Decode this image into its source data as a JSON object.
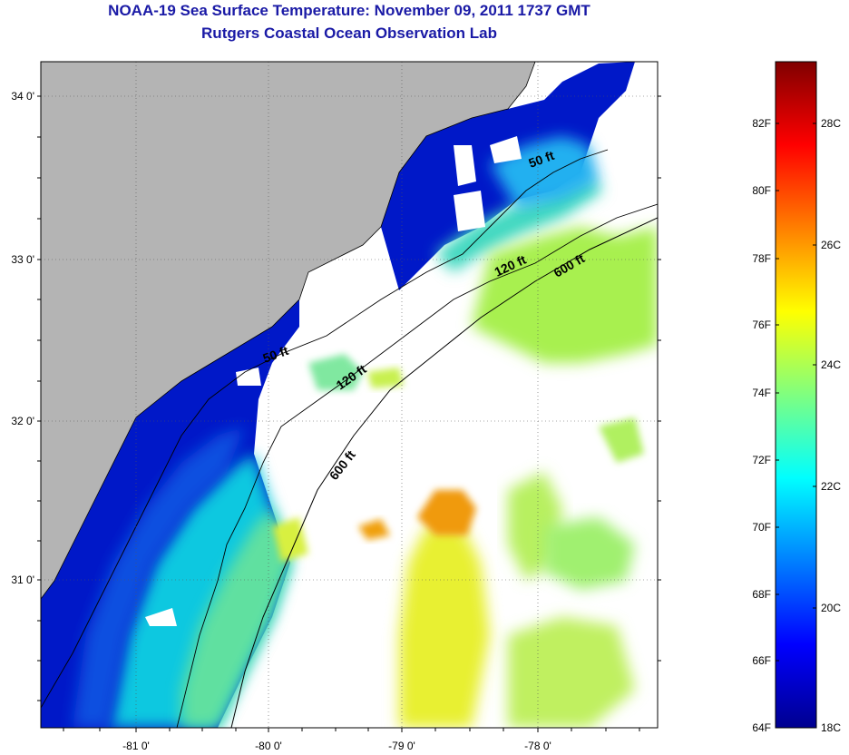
{
  "header": {
    "title": "NOAA-19 Sea Surface Temperature:  November 09, 2011 1737 GMT",
    "subtitle": "Rutgers Coastal Ocean Observation Lab"
  },
  "map": {
    "lon_labels": [
      "-81 0'",
      "-80 0'",
      "-79 0'",
      "-78 0'"
    ],
    "lat_labels": [
      "34 0'",
      "33 0'",
      "32 0'",
      "31 0'"
    ],
    "contours": [
      {
        "label": "50 ft"
      },
      {
        "label": "120 ft"
      },
      {
        "label": "600 ft"
      }
    ],
    "colors": {
      "land": "#b4b4b4",
      "no_data": "#ffffff",
      "coast": "#000000"
    }
  },
  "colorbar": {
    "fahrenheit_labels": [
      "82F",
      "80F",
      "78F",
      "76F",
      "74F",
      "72F",
      "70F",
      "68F",
      "66F",
      "64F"
    ],
    "celsius_labels": [
      "28C",
      "26C",
      "24C",
      "22C",
      "20C",
      "18C"
    ],
    "colormap": "jet"
  }
}
